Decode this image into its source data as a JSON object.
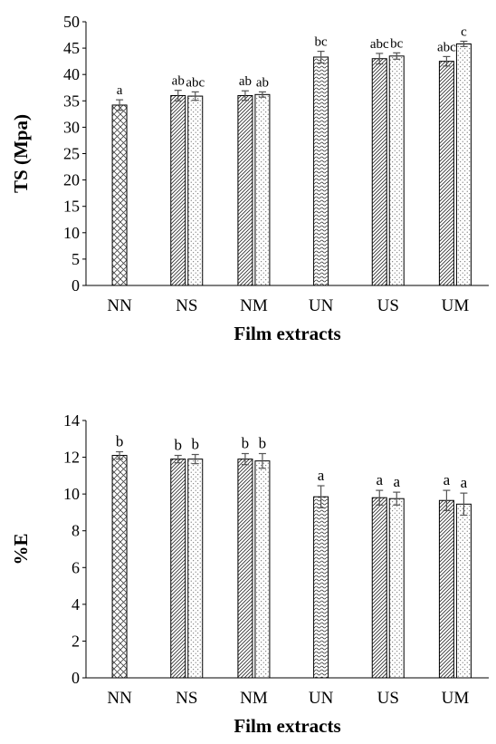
{
  "chart_data": [
    {
      "type": "bar",
      "id": "ts",
      "xlabel": "Film extracts",
      "ylabel": "TS (Mpa)",
      "ylim": [
        0,
        50
      ],
      "yticks": [
        "0",
        "5",
        "10",
        "15",
        "20",
        "25",
        "30",
        "35",
        "40",
        "45",
        "50"
      ],
      "categories": [
        "NN",
        "NS",
        "NM",
        "UN",
        "US",
        "UM"
      ],
      "grid": false,
      "bars": [
        {
          "category": "NN",
          "value": 34.2,
          "error": 1.0,
          "label": "a",
          "pattern": "crosshatch"
        },
        {
          "category": "NS",
          "value": 36.0,
          "error": 1.0,
          "label": "ab",
          "pattern": "diagonal"
        },
        {
          "category": "NS",
          "value": 35.9,
          "error": 0.8,
          "label": "abc",
          "pattern": "dots"
        },
        {
          "category": "NM",
          "value": 36.0,
          "error": 0.9,
          "label": "ab",
          "pattern": "diagonal"
        },
        {
          "category": "NM",
          "value": 36.2,
          "error": 0.5,
          "label": "ab",
          "pattern": "dots"
        },
        {
          "category": "UN",
          "value": 43.3,
          "error": 1.1,
          "label": "bc",
          "pattern": "wave"
        },
        {
          "category": "US",
          "value": 43.0,
          "error": 1.0,
          "label": "abc",
          "pattern": "diagonal"
        },
        {
          "category": "US",
          "value": 43.5,
          "error": 0.6,
          "label": "bc",
          "pattern": "dots"
        },
        {
          "category": "UM",
          "value": 42.5,
          "error": 0.9,
          "label": "abc",
          "pattern": "diagonal"
        },
        {
          "category": "UM",
          "value": 45.8,
          "error": 0.5,
          "label": "c",
          "pattern": "dots"
        }
      ]
    },
    {
      "type": "bar",
      "id": "e",
      "xlabel": "Film extracts",
      "ylabel": "%E",
      "ylim": [
        0,
        14
      ],
      "yticks": [
        "0",
        "2",
        "4",
        "6",
        "8",
        "10",
        "12",
        "14"
      ],
      "categories": [
        "NN",
        "NS",
        "NM",
        "UN",
        "US",
        "UM"
      ],
      "grid": false,
      "bars": [
        {
          "category": "NN",
          "value": 12.1,
          "error": 0.2,
          "label": "b",
          "pattern": "crosshatch"
        },
        {
          "category": "NS",
          "value": 11.9,
          "error": 0.2,
          "label": "b",
          "pattern": "diagonal"
        },
        {
          "category": "NS",
          "value": 11.9,
          "error": 0.25,
          "label": "b",
          "pattern": "dots"
        },
        {
          "category": "NM",
          "value": 11.9,
          "error": 0.3,
          "label": "b",
          "pattern": "diagonal"
        },
        {
          "category": "NM",
          "value": 11.8,
          "error": 0.4,
          "label": "b",
          "pattern": "dots"
        },
        {
          "category": "UN",
          "value": 9.85,
          "error": 0.6,
          "label": "a",
          "pattern": "wave"
        },
        {
          "category": "US",
          "value": 9.8,
          "error": 0.4,
          "label": "a",
          "pattern": "diagonal"
        },
        {
          "category": "US",
          "value": 9.75,
          "error": 0.35,
          "label": "a",
          "pattern": "dots"
        },
        {
          "category": "UM",
          "value": 9.65,
          "error": 0.55,
          "label": "a",
          "pattern": "diagonal"
        },
        {
          "category": "UM",
          "value": 9.45,
          "error": 0.6,
          "label": "a",
          "pattern": "dots"
        }
      ]
    }
  ]
}
